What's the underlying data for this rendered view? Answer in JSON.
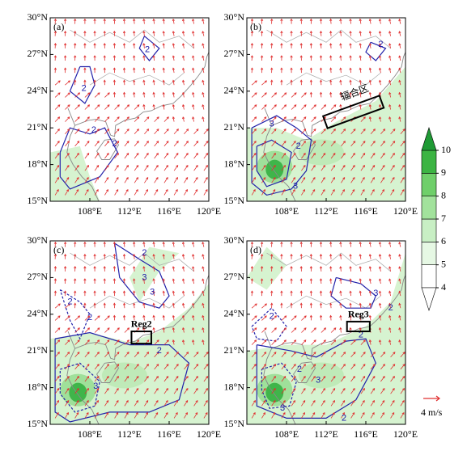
{
  "lat_ticks": [
    "30°N",
    "27°N",
    "24°N",
    "21°N",
    "18°N",
    "15°N"
  ],
  "lon_ticks": [
    "108°E",
    "112°E",
    "116°E",
    "120°E"
  ],
  "panels": [
    {
      "label": "(a)",
      "contour_labels": [
        "2",
        "2",
        "2",
        "2"
      ]
    },
    {
      "label": "(b)",
      "box_label": "辐合区",
      "contour_labels": [
        "2",
        "3",
        "2",
        "3"
      ]
    },
    {
      "label": "(c)",
      "box_label": "Reg2",
      "contour_labels": [
        "2",
        "3",
        "2",
        "3",
        "2",
        "2",
        "3"
      ]
    },
    {
      "label": "(d)",
      "box_label": "Reg3",
      "contour_labels": [
        "3",
        "2",
        "2",
        "2",
        "3",
        "2",
        "3",
        "2"
      ]
    }
  ],
  "colorbar": {
    "ticks": [
      4,
      5,
      6,
      7,
      8,
      9,
      10
    ]
  },
  "vector_legend": "4 m/s"
}
